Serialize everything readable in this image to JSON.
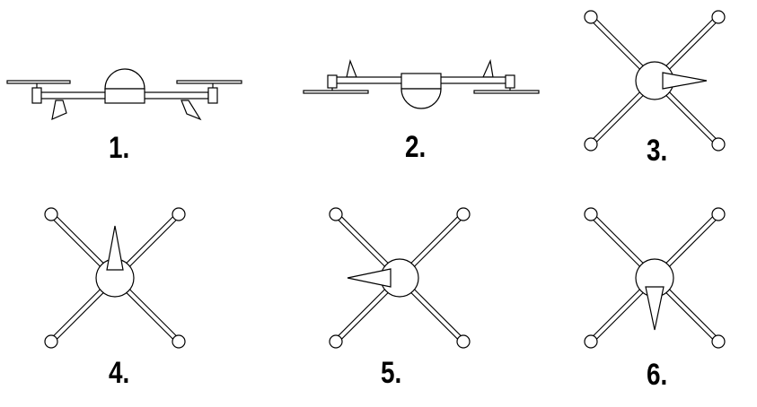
{
  "panels": [
    {
      "label": "1.",
      "view": "side",
      "variant": "pod-up"
    },
    {
      "label": "2.",
      "view": "side",
      "variant": "pod-down"
    },
    {
      "label": "3.",
      "view": "top",
      "heading": "right"
    },
    {
      "label": "4.",
      "view": "top",
      "heading": "up"
    },
    {
      "label": "5.",
      "view": "top",
      "heading": "left"
    },
    {
      "label": "6.",
      "view": "top",
      "heading": "down"
    }
  ],
  "colors": {
    "stroke": "#000000",
    "fill": "#ffffff",
    "text": "#000000"
  }
}
